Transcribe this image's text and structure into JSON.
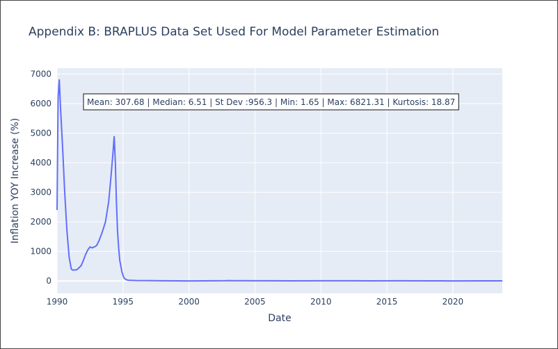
{
  "chart_data": {
    "type": "line",
    "title": "Appendix B: BRAPLUS Data Set Used For Model Parameter Estimation",
    "xlabel": "Date",
    "ylabel": "Inflation YOY Increase (%)",
    "xlim": [
      1990.0,
      2023.75
    ],
    "ylim": [
      -420,
      7200
    ],
    "x_ticks": [
      1990,
      1995,
      2000,
      2005,
      2010,
      2015,
      2020
    ],
    "x_tick_labels": [
      "1990",
      "1995",
      "2000",
      "2005",
      "2010",
      "2015",
      "2020"
    ],
    "y_ticks": [
      0,
      1000,
      2000,
      3000,
      4000,
      5000,
      6000,
      7000
    ],
    "y_tick_labels": [
      "0",
      "1000",
      "2000",
      "3000",
      "4000",
      "5000",
      "6000",
      "7000"
    ],
    "grid": true,
    "line_color": "#636efa",
    "plot_background": "#e5ecf6",
    "annotation": "Mean: 307.68 | Median: 6.51 | St Dev :956.3 | Min: 1.65 | Max: 6821.31 | Kurtosis: 18.87",
    "series": [
      {
        "x": [
          1990.0,
          1990.08,
          1990.17,
          1990.25,
          1990.42,
          1990.58,
          1990.75,
          1990.92,
          1991.08,
          1991.17,
          1991.33,
          1991.5,
          1991.67,
          1991.83,
          1992.0,
          1992.17,
          1992.33,
          1992.5,
          1992.67,
          1992.75,
          1992.83,
          1993.0,
          1993.17,
          1993.42,
          1993.67,
          1993.92,
          1994.08,
          1994.25,
          1994.33,
          1994.42,
          1994.5,
          1994.58,
          1994.67,
          1994.75,
          1994.92,
          1995.08,
          1995.25,
          1995.42,
          1995.58,
          1996.0,
          1997.0,
          1998.0,
          1999.0,
          2000.0,
          2001.0,
          2002.0,
          2002.83,
          2003.0,
          2003.42,
          2004.0,
          2005.0,
          2006.0,
          2008.0,
          2010.0,
          2012.0,
          2014.0,
          2016.0,
          2018.0,
          2020.0,
          2022.0,
          2023.75
        ],
        "y": [
          2400,
          6200,
          6820,
          6000,
          4500,
          3000,
          1700,
          800,
          400,
          370,
          370,
          380,
          450,
          520,
          700,
          900,
          1050,
          1150,
          1120,
          1140,
          1150,
          1200,
          1350,
          1650,
          2000,
          2700,
          3500,
          4400,
          4900,
          4000,
          2700,
          1700,
          1100,
          700,
          300,
          100,
          40,
          25,
          22,
          15,
          12,
          6,
          3,
          2,
          3,
          5,
          8,
          12,
          10,
          8,
          6,
          5,
          4,
          5,
          6,
          4,
          5,
          3,
          2,
          3,
          4
        ]
      }
    ]
  }
}
